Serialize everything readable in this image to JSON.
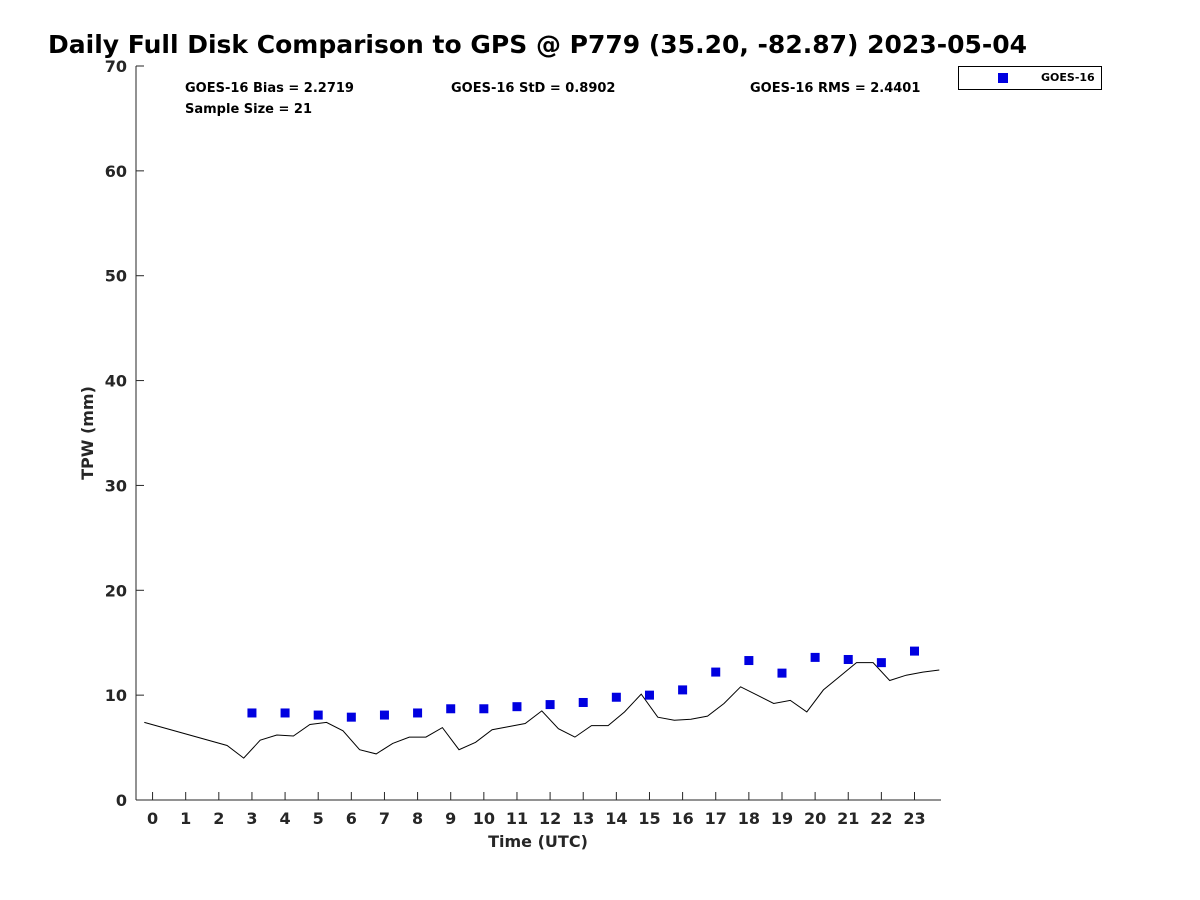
{
  "chart_data": {
    "type": "scatter",
    "title": "Daily Full Disk Comparison to GPS @ P779 (35.20, -82.87) 2023-05-04",
    "xlabel": "Time (UTC)",
    "ylabel": "TPW (mm)",
    "xlim": [
      -0.5,
      23.8
    ],
    "ylim": [
      0,
      70
    ],
    "xticks": [
      0,
      1,
      2,
      3,
      4,
      5,
      6,
      7,
      8,
      9,
      10,
      11,
      12,
      13,
      14,
      15,
      16,
      17,
      18,
      19,
      20,
      21,
      22,
      23
    ],
    "yticks": [
      0,
      10,
      20,
      30,
      40,
      50,
      60,
      70
    ],
    "grid": false,
    "legend": {
      "placement": "top-right-outside",
      "entries": [
        "GOES-16"
      ]
    },
    "stats": {
      "bias": "GOES-16 Bias = 2.2719",
      "std": "GOES-16 StD = 0.8902",
      "rms": "GOES-16 RMS = 2.4401",
      "sample_size": "Sample Size = 21"
    },
    "series": [
      {
        "name": "GOES-16",
        "kind": "scatter",
        "marker": "square",
        "color": "#0000e0",
        "x": [
          3,
          4,
          5,
          6,
          7,
          8,
          9,
          10,
          11,
          12,
          13,
          14,
          15,
          16,
          17,
          18,
          19,
          20,
          21,
          22,
          23
        ],
        "y": [
          8.3,
          8.3,
          8.1,
          7.9,
          8.1,
          8.3,
          8.7,
          8.7,
          8.9,
          9.1,
          9.3,
          9.8,
          10.0,
          10.5,
          12.2,
          13.3,
          12.1,
          13.6,
          13.4,
          13.1,
          14.2
        ]
      },
      {
        "kind": "line",
        "color": "#000000",
        "x": [
          -0.25,
          2.25,
          2.75,
          3.25,
          3.75,
          4.25,
          4.75,
          5.25,
          5.75,
          6.25,
          6.75,
          7.25,
          7.75,
          8.25,
          8.75,
          9.25,
          9.75,
          10.25,
          10.75,
          11.25,
          11.75,
          12.25,
          12.75,
          13.25,
          13.75,
          14.25,
          14.75,
          15.25,
          15.75,
          16.25,
          16.75,
          17.25,
          17.75,
          18.25,
          18.75,
          19.25,
          19.75,
          20.25,
          20.75,
          21.25,
          21.75,
          22.25,
          22.75,
          23.25,
          23.75
        ],
        "y": [
          7.4,
          5.2,
          4.0,
          5.7,
          6.2,
          6.1,
          7.2,
          7.4,
          6.6,
          4.8,
          4.4,
          5.4,
          6.0,
          6.0,
          6.9,
          4.8,
          5.5,
          6.7,
          7.0,
          7.3,
          8.5,
          6.8,
          6.0,
          7.1,
          7.1,
          8.4,
          10.1,
          7.9,
          7.6,
          7.7,
          8.0,
          9.2,
          10.8,
          10.0,
          9.2,
          9.5,
          8.4,
          10.5,
          11.8,
          13.1,
          13.1,
          11.4,
          11.9,
          12.2,
          12.4
        ]
      }
    ]
  }
}
